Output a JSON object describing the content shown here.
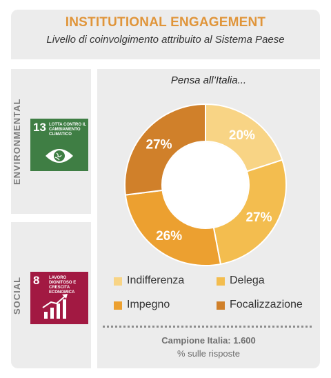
{
  "header": {
    "title": "INSTITUTIONAL ENGAGEMENT",
    "subtitle": "Livello di coinvolgimento attribuito al Sistema Paese"
  },
  "sections": {
    "environmental": {
      "label": "ENVIRONMENTAL",
      "sdg": {
        "number": "13",
        "text": "LOTTA CONTRO IL CAMBIAMENTO CLIMATICO",
        "color": "#3f7e44",
        "icon": "eye-globe-icon"
      }
    },
    "social": {
      "label": "SOCIAL",
      "sdg": {
        "number": "8",
        "text": "LAVORO DIGNITOSO E CRESCITA ECONOMICA",
        "color": "#a21942",
        "icon": "growth-chart-icon"
      }
    }
  },
  "chart_data": {
    "type": "pie",
    "title": "Pensa all’Italia...",
    "categories": [
      "Indifferenza",
      "Delega",
      "Impegno",
      "Focalizzazione"
    ],
    "values": [
      20,
      27,
      26,
      27
    ],
    "value_labels": [
      "20%",
      "27%",
      "26%",
      "27%"
    ],
    "colors": [
      "#f8d485",
      "#f3bd4f",
      "#eca030",
      "#d0802a"
    ],
    "legend_placement": "bottom"
  },
  "footer": {
    "sample": "Campione Italia: 1.600",
    "note": "% sulle risposte"
  }
}
